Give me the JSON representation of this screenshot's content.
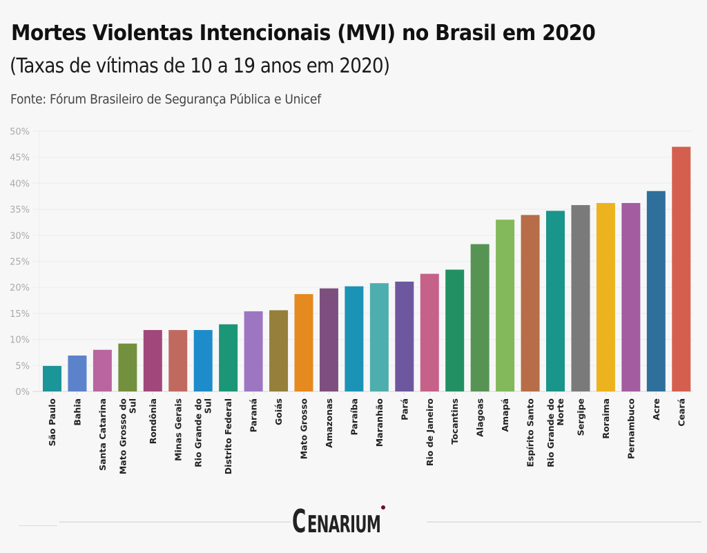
{
  "header": {
    "title": "Mortes Violentas Intencionais (MVI) no Brasil em 2020",
    "subtitle": "(Taxas de vítimas de 10 a 19 anos em 2020)",
    "source": "Fonte: Fórum Brasileiro de Segurança Pública e Unicef"
  },
  "footer": {
    "logo_first": "C",
    "logo_rest": "ENARIUM",
    "logo_dot_color": "#6b0f1f"
  },
  "chart_data": {
    "type": "bar",
    "title": "Mortes Violentas Intencionais (MVI) no Brasil em 2020",
    "subtitle": "(Taxas de vítimas de 10 a 19 anos em 2020)",
    "xlabel": "",
    "ylabel": "",
    "ylim": [
      0,
      50
    ],
    "yticks": [
      0,
      5,
      10,
      15,
      20,
      25,
      30,
      35,
      40,
      45,
      50
    ],
    "ytick_suffix": "%",
    "grid": true,
    "legend": "none",
    "categories": [
      [
        "São Paulo"
      ],
      [
        "Bahia"
      ],
      [
        "Santa Catarina"
      ],
      [
        "Mato Grosso do",
        "Sul"
      ],
      [
        "Rondônia"
      ],
      [
        "Minas Gerais"
      ],
      [
        "Rio Grande do",
        "Sul"
      ],
      [
        "Distrito Federal"
      ],
      [
        "Paraná"
      ],
      [
        "Goiás"
      ],
      [
        "Mato Grosso"
      ],
      [
        "Amazonas"
      ],
      [
        "Paraíba"
      ],
      [
        "Maranhão"
      ],
      [
        "Pará"
      ],
      [
        "Rio de Janeiro"
      ],
      [
        "Tocantins"
      ],
      [
        "Alagoas"
      ],
      [
        "Amapá"
      ],
      [
        "Espírito Santo"
      ],
      [
        "Rio Grande do",
        "Norte"
      ],
      [
        "Sergipe"
      ],
      [
        "Roraima"
      ],
      [
        "Pernambuco"
      ],
      [
        "Acre"
      ],
      [
        "Ceará"
      ]
    ],
    "values": [
      4.9,
      6.9,
      8.0,
      9.2,
      11.8,
      11.8,
      11.8,
      12.9,
      15.4,
      15.6,
      18.7,
      19.8,
      20.2,
      20.8,
      21.1,
      22.6,
      23.4,
      28.3,
      33.0,
      33.9,
      34.7,
      35.8,
      36.2,
      36.2,
      38.5,
      47.0
    ],
    "colors": [
      "#1b9597",
      "#5b82cb",
      "#b965a0",
      "#72903d",
      "#a0487b",
      "#c06a5f",
      "#1e8ccb",
      "#1b9677",
      "#9d76c1",
      "#967f3a",
      "#e48a1f",
      "#7d4f7f",
      "#1b93b6",
      "#4eaeae",
      "#6d58a0",
      "#c66189",
      "#229062",
      "#579453",
      "#83b85b",
      "#b66d48",
      "#1a958b",
      "#7a7a7a",
      "#ecb31e",
      "#a35c9f",
      "#2f6f9b",
      "#d45f4f"
    ]
  }
}
